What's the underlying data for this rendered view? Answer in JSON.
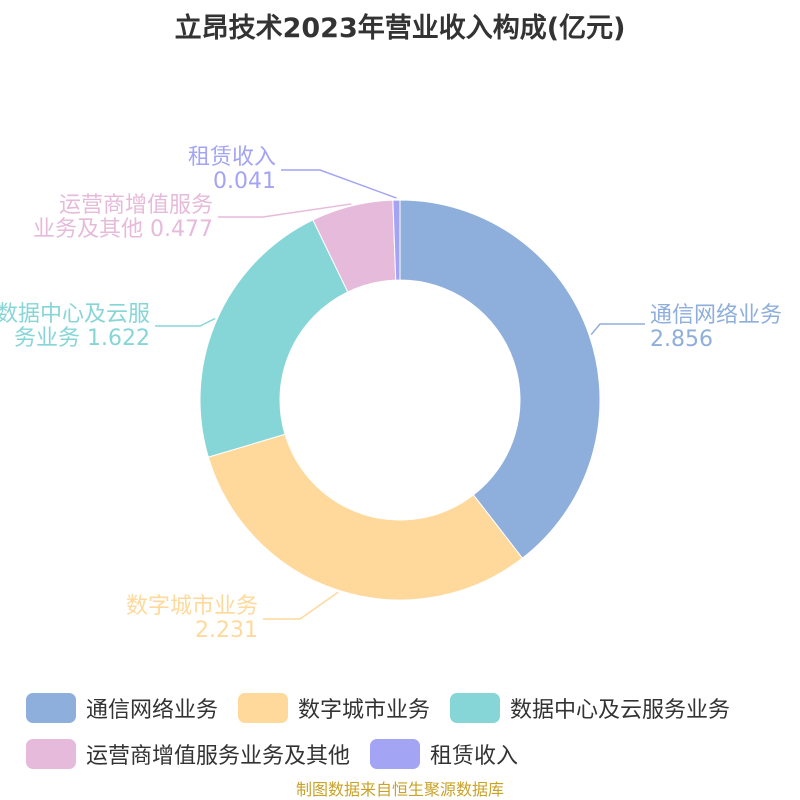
{
  "chart_data": {
    "type": "pie",
    "title": "立昂技术2023年营业收入构成(亿元)",
    "categories": [
      "通信网络业务",
      "数字城市业务",
      "数据中心及云服务业务",
      "运营商增值服务业务及其他",
      "租赁收入"
    ],
    "values": [
      2.856,
      2.231,
      1.622,
      0.477,
      0.041
    ],
    "value_labels": [
      "2.856",
      "2.231",
      "1.622",
      "0.477",
      "0.041"
    ],
    "colors": [
      "#8eaedb",
      "#fed99b",
      "#86d5d7",
      "#e6bada",
      "#a3a4f4"
    ],
    "legend": "bottom"
  },
  "source_text": "制图数据来自恒生聚源数据库"
}
